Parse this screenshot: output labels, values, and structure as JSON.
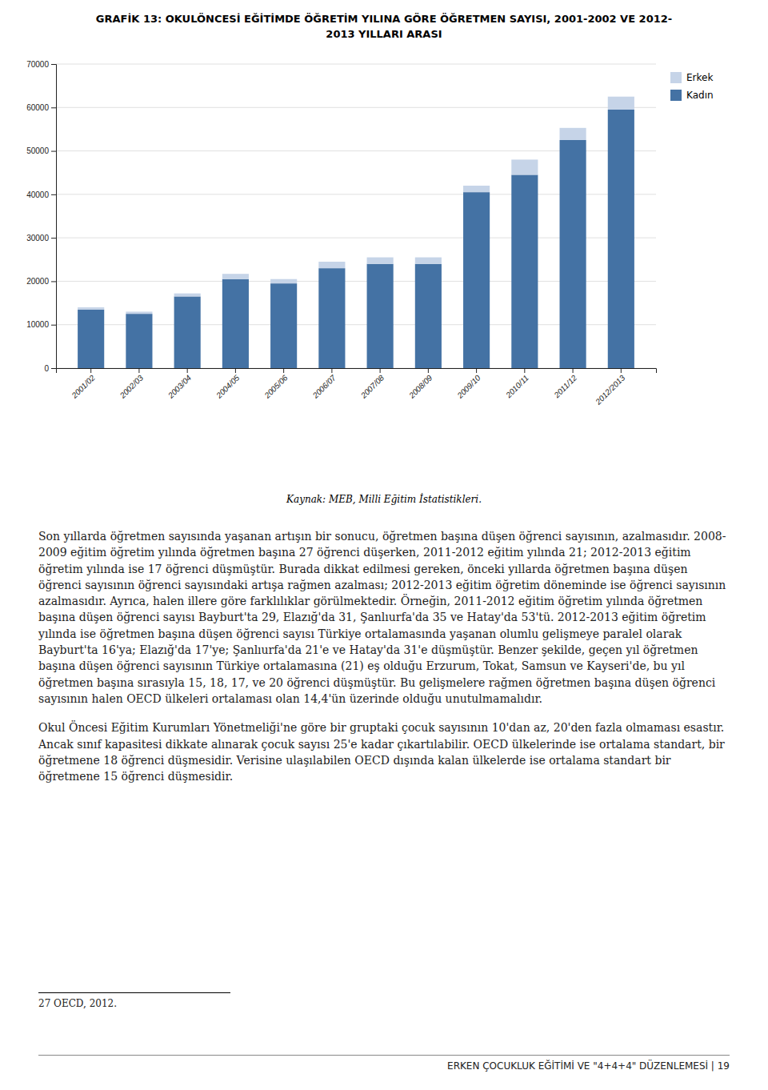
{
  "chart_data": {
    "type": "bar",
    "stacked": true,
    "title": "GRAFİK 13: OKULÖNCESİ EĞİTİMDE ÖĞRETİM YILINA GÖRE ÖĞRETMEN SAYISI, 2001-2002 VE 2012-\n2013 YILLARI ARASI",
    "categories": [
      "2001/02",
      "2002/03",
      "2003/04",
      "2004/05",
      "2005/06",
      "2006/07",
      "2007/08",
      "2008/09",
      "2009/10",
      "2010/11",
      "2011/12",
      "2012/2013"
    ],
    "series": [
      {
        "name": "Kadın",
        "color": "#4472A4",
        "values": [
          13500,
          12500,
          16500,
          20500,
          19500,
          23000,
          24000,
          24000,
          40500,
          44500,
          52500,
          59500
        ]
      },
      {
        "name": "Erkek",
        "color": "#C6D4E8",
        "values": [
          500,
          500,
          700,
          1200,
          1000,
          1500,
          1500,
          1500,
          1500,
          3500,
          2800,
          3000
        ]
      }
    ],
    "ylim": [
      0,
      70000
    ],
    "yticks": [
      0,
      10000,
      20000,
      30000,
      40000,
      50000,
      60000,
      70000
    ],
    "grid": true,
    "legend": "right"
  },
  "source_text": "Kaynak: MEB, Milli Eğitim İstatistikleri.",
  "body_text": [
    "Son yıllarda öğretmen sayısında yaşanan artışın bir sonucu, öğretmen başına düşen öğrenci sayısının, azalmasıdır. 2008-2009 eğitim öğretim yılında öğretmen başına 27 öğrenci düşerken, 2011-2012 eğitim yılında 21; 2012-2013 eğitim öğretim yılında ise 17 öğrenci düşmüştür. Burada dikkat edilmesi gereken, önceki yıllarda öğretmen başına düşen öğrenci sayısının öğrenci sayısındaki artışa rağmen azalması; 2012-2013 eğitim öğretim döneminde ise öğrenci sayısının azalmasıdır. Ayrıca, halen illere göre farklılıklar görülmektedir. Örneğin, 2011-2012 eğitim öğretim yılında öğretmen başına düşen öğrenci sayısı Bayburt'ta 29, Elazığ'da 31, Şanlıurfa'da 35 ve Hatay'da 53'tü. 2012-2013 eğitim öğretim yılında ise öğretmen başına düşen öğrenci sayısı Türkiye ortalamasında yaşanan olumlu gelişmeye paralel olarak Bayburt'ta 16'ya; Elazığ'da 17'ye; Şanlıurfa'da 21'e ve Hatay'da 31'e düşmüştür. Benzer şekilde, geçen yıl öğretmen başına düşen öğrenci sayısının Türkiye ortalamasına (21) eş olduğu Erzurum, Tokat, Samsun ve Kayseri'de, bu yıl öğretmen başına sırasıyla 15, 18, 17, ve 20 öğrenci düşmüştür. Bu gelişmelere rağmen öğretmen başına düşen öğrenci sayısının halen OECD ülkeleri ortalaması olan 14,4'ün üzerinde olduğu unutulmamalıdır.",
    "Okul Öncesi Eğitim Kurumları Yönetmeliği'ne göre bir gruptaki çocuk sayısının 10'dan az, 20'den fazla olmaması esastır. Ancak sınıf kapasitesi dikkate alınarak çocuk sayısı 25'e kadar çıkartılabilir. OECD ülkelerinde ise ortalama standart, bir öğretmene 18 öğrenci düşmesidir. Verisine ulaşılabilen OECD dışında kalan ülkelerde ise ortalama standart bir öğretmene 15 öğrenci düşmesidir."
  ],
  "footnote": "27 OECD, 2012.",
  "footer_text": "ERKEN ÇOCUKLUK EĞİTİMİ VE \"4+4+4\" DÜZENLEMESİ  |  19"
}
